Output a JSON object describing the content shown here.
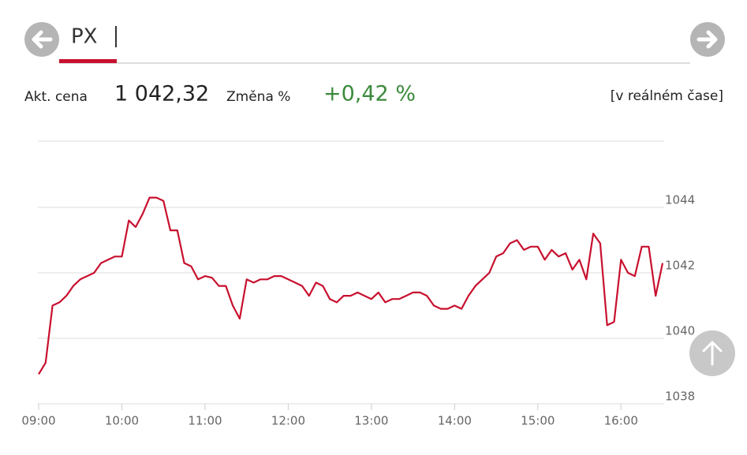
{
  "quote": {
    "tab": "PX",
    "price_label": "Akt. cena",
    "price": "1 042,32",
    "change_label": "Změna %",
    "change": "+0,42 %",
    "mode": "[v reálném čase]"
  },
  "chart_data": {
    "type": "line",
    "color": "#c8102e",
    "grid": true,
    "xlim": [
      "09:00",
      "16:30"
    ],
    "xticks": [
      "09:00",
      "10:00",
      "11:00",
      "12:00",
      "13:00",
      "14:00",
      "15:00",
      "16:00"
    ],
    "ylim": [
      1038,
      1046
    ],
    "yticks": [
      1038,
      1040,
      1042,
      1044
    ],
    "x": [
      "09:00",
      "09:05",
      "09:10",
      "09:15",
      "09:20",
      "09:25",
      "09:30",
      "09:35",
      "09:40",
      "09:45",
      "09:50",
      "09:55",
      "10:00",
      "10:05",
      "10:10",
      "10:15",
      "10:20",
      "10:25",
      "10:30",
      "10:35",
      "10:40",
      "10:45",
      "10:50",
      "10:55",
      "11:00",
      "11:05",
      "11:10",
      "11:15",
      "11:20",
      "11:25",
      "11:30",
      "11:35",
      "11:40",
      "11:45",
      "11:50",
      "11:55",
      "12:00",
      "12:05",
      "12:10",
      "12:15",
      "12:20",
      "12:25",
      "12:30",
      "12:35",
      "12:40",
      "12:45",
      "12:50",
      "12:55",
      "13:00",
      "13:05",
      "13:10",
      "13:15",
      "13:20",
      "13:25",
      "13:30",
      "13:35",
      "13:40",
      "13:45",
      "13:50",
      "13:55",
      "14:00",
      "14:05",
      "14:10",
      "14:15",
      "14:20",
      "14:25",
      "14:30",
      "14:35",
      "14:40",
      "14:45",
      "14:50",
      "14:55",
      "15:00",
      "15:05",
      "15:10",
      "15:15",
      "15:20",
      "15:25",
      "15:30",
      "15:35",
      "15:40",
      "15:45",
      "15:50",
      "15:55",
      "16:00",
      "16:05",
      "16:10",
      "16:15",
      "16:20",
      "16:25",
      "16:30"
    ],
    "values": [
      1038.9,
      1039.25,
      1041.0,
      1041.1,
      1041.3,
      1041.6,
      1041.8,
      1041.9,
      1042.0,
      1042.3,
      1042.4,
      1042.5,
      1042.5,
      1043.6,
      1043.4,
      1043.8,
      1044.3,
      1044.3,
      1044.2,
      1043.3,
      1043.3,
      1042.3,
      1042.2,
      1041.8,
      1041.9,
      1041.85,
      1041.6,
      1041.6,
      1041.0,
      1040.6,
      1041.8,
      1041.7,
      1041.8,
      1041.8,
      1041.9,
      1041.9,
      1041.8,
      1041.7,
      1041.6,
      1041.3,
      1041.7,
      1041.6,
      1041.2,
      1041.1,
      1041.3,
      1041.3,
      1041.4,
      1041.3,
      1041.2,
      1041.4,
      1041.1,
      1041.2,
      1041.2,
      1041.3,
      1041.4,
      1041.4,
      1041.3,
      1041.0,
      1040.9,
      1040.9,
      1041.0,
      1040.9,
      1041.3,
      1041.6,
      1041.8,
      1042.0,
      1042.5,
      1042.6,
      1042.9,
      1043.0,
      1042.7,
      1042.8,
      1042.8,
      1042.4,
      1042.7,
      1042.5,
      1042.6,
      1042.1,
      1042.4,
      1041.8,
      1043.2,
      1042.9,
      1040.4,
      1040.5,
      1042.4,
      1042.0,
      1041.9,
      1042.8,
      1042.8,
      1041.3,
      1042.3
    ]
  }
}
